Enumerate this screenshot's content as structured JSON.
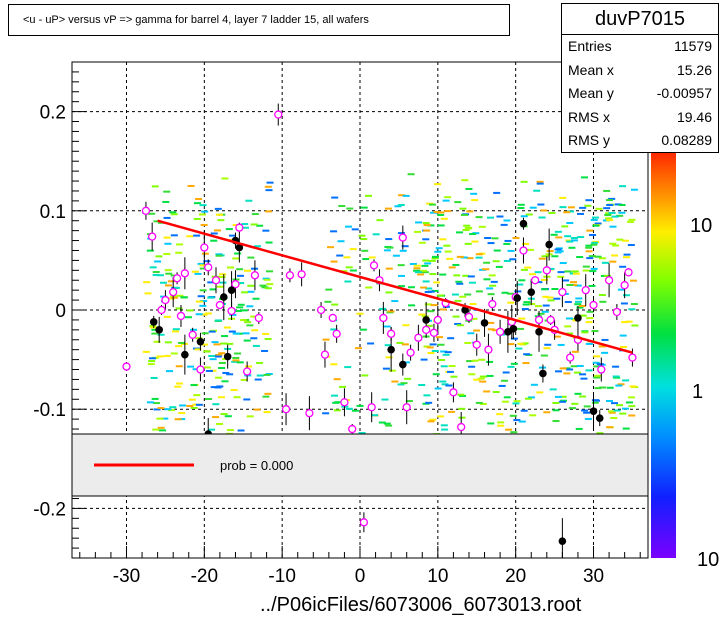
{
  "chart_data": {
    "type": "scatter",
    "title": "<u - uP>       versus   vP =>  gamma for barrel 4, layer 7 ladder 15, all wafers",
    "xlabel": "../P06icFiles/6073006_6073013.root",
    "ylabel": "",
    "xlim": [
      -37,
      37
    ],
    "ylim": [
      -0.25,
      0.25
    ],
    "x_ticks": [
      -30,
      -20,
      -10,
      0,
      10,
      20,
      30
    ],
    "x_tick_labels": [
      "-30",
      "-20",
      "-10",
      "0",
      "10",
      "20",
      "30"
    ],
    "y_ticks": [
      -0.2,
      -0.1,
      0,
      0.1,
      0.2
    ],
    "y_tick_labels": [
      "-0.2",
      "-0.1",
      "0",
      "0.1",
      "0.2"
    ],
    "grid": true,
    "colorbar_labels": [
      "10",
      "1",
      "10"
    ],
    "fit_line": {
      "x": [
        -26,
        35
      ],
      "y": [
        0.09,
        -0.043
      ],
      "color": "#ff0000"
    },
    "profile_black": [
      {
        "x": -26.5,
        "y": -0.012
      },
      {
        "x": -25.8,
        "y": -0.02
      },
      {
        "x": -22.5,
        "y": -0.045
      },
      {
        "x": -20.5,
        "y": -0.032
      },
      {
        "x": -19.5,
        "y": -0.125
      },
      {
        "x": -17.5,
        "y": 0.013
      },
      {
        "x": -17.0,
        "y": -0.047
      },
      {
        "x": -16.5,
        "y": 0.02
      },
      {
        "x": -16.0,
        "y": 0.07
      },
      {
        "x": -15.5,
        "y": 0.063
      },
      {
        "x": 4.0,
        "y": -0.04
      },
      {
        "x": 5.5,
        "y": -0.055
      },
      {
        "x": 8.5,
        "y": -0.01
      },
      {
        "x": 13.5,
        "y": 0.0
      },
      {
        "x": 16.0,
        "y": -0.013
      },
      {
        "x": 19.0,
        "y": -0.022
      },
      {
        "x": 19.7,
        "y": -0.019
      },
      {
        "x": 20.2,
        "y": 0.012
      },
      {
        "x": 21.0,
        "y": 0.087
      },
      {
        "x": 22.0,
        "y": 0.018
      },
      {
        "x": 23.0,
        "y": -0.022
      },
      {
        "x": 23.5,
        "y": -0.064
      },
      {
        "x": 24.3,
        "y": 0.066
      },
      {
        "x": 26.0,
        "y": -0.233
      },
      {
        "x": 28.0,
        "y": -0.008
      },
      {
        "x": 30.0,
        "y": -0.102
      },
      {
        "x": 30.8,
        "y": -0.109
      }
    ],
    "profile_magenta": [
      {
        "x": -30,
        "y": -0.057
      },
      {
        "x": -27.5,
        "y": 0.1
      },
      {
        "x": -26.7,
        "y": 0.074
      },
      {
        "x": -25.5,
        "y": 0.0
      },
      {
        "x": -25.0,
        "y": 0.01
      },
      {
        "x": -24.0,
        "y": 0.018
      },
      {
        "x": -23.5,
        "y": 0.032
      },
      {
        "x": -23.0,
        "y": -0.006
      },
      {
        "x": -22.5,
        "y": 0.037
      },
      {
        "x": -21.5,
        "y": -0.025
      },
      {
        "x": -20.5,
        "y": -0.06
      },
      {
        "x": -20.0,
        "y": 0.063
      },
      {
        "x": -19.5,
        "y": 0.043
      },
      {
        "x": -18.5,
        "y": 0.03
      },
      {
        "x": -18.0,
        "y": 0.005
      },
      {
        "x": -16.5,
        "y": -0.001
      },
      {
        "x": -16.0,
        "y": 0.026
      },
      {
        "x": -15.5,
        "y": 0.083
      },
      {
        "x": -14.5,
        "y": -0.062
      },
      {
        "x": -13.5,
        "y": 0.035
      },
      {
        "x": -13.0,
        "y": -0.008
      },
      {
        "x": -10.5,
        "y": 0.197
      },
      {
        "x": -9.5,
        "y": -0.1
      },
      {
        "x": -9.0,
        "y": 0.035
      },
      {
        "x": -7.5,
        "y": 0.036
      },
      {
        "x": -6.5,
        "y": -0.104
      },
      {
        "x": -5.0,
        "y": 0.0
      },
      {
        "x": -4.5,
        "y": -0.045
      },
      {
        "x": -3.5,
        "y": -0.008
      },
      {
        "x": -3.0,
        "y": -0.024
      },
      {
        "x": -2.0,
        "y": -0.093
      },
      {
        "x": -1.0,
        "y": -0.12
      },
      {
        "x": 0.5,
        "y": -0.214
      },
      {
        "x": 1.5,
        "y": -0.098
      },
      {
        "x": 1.8,
        "y": 0.045
      },
      {
        "x": 2.5,
        "y": 0.03
      },
      {
        "x": 3.0,
        "y": -0.008
      },
      {
        "x": 4.0,
        "y": -0.024
      },
      {
        "x": 5.5,
        "y": 0.073
      },
      {
        "x": 6.0,
        "y": -0.098
      },
      {
        "x": 6.5,
        "y": -0.043
      },
      {
        "x": 7.5,
        "y": -0.028
      },
      {
        "x": 8.5,
        "y": -0.02
      },
      {
        "x": 9.5,
        "y": -0.023
      },
      {
        "x": 10.0,
        "y": -0.01
      },
      {
        "x": 11.0,
        "y": 0.007
      },
      {
        "x": 12.0,
        "y": -0.083
      },
      {
        "x": 13.0,
        "y": -0.118
      },
      {
        "x": 14.0,
        "y": -0.007
      },
      {
        "x": 15.0,
        "y": -0.035
      },
      {
        "x": 16.5,
        "y": -0.04
      },
      {
        "x": 17.0,
        "y": 0.006
      },
      {
        "x": 18.0,
        "y": -0.022
      },
      {
        "x": 19.5,
        "y": -0.012
      },
      {
        "x": 20.0,
        "y": 0.013
      },
      {
        "x": 21.0,
        "y": 0.06
      },
      {
        "x": 22.5,
        "y": 0.03
      },
      {
        "x": 23.0,
        "y": -0.01
      },
      {
        "x": 24.0,
        "y": 0.04
      },
      {
        "x": 24.5,
        "y": -0.01
      },
      {
        "x": 25.0,
        "y": -0.02
      },
      {
        "x": 26.0,
        "y": 0.018
      },
      {
        "x": 27.0,
        "y": -0.048
      },
      {
        "x": 28.0,
        "y": -0.03
      },
      {
        "x": 29.0,
        "y": 0.02
      },
      {
        "x": 30.0,
        "y": 0.005
      },
      {
        "x": 31.0,
        "y": -0.06
      },
      {
        "x": 32.0,
        "y": 0.03
      },
      {
        "x": 33.0,
        "y": -0.002
      },
      {
        "x": 34.0,
        "y": 0.025
      },
      {
        "x": 34.5,
        "y": 0.038
      },
      {
        "x": 35.0,
        "y": -0.048
      }
    ],
    "legend": {
      "entry": "prob = 0.000",
      "line_color": "#ff0000"
    },
    "stats": {
      "name": "duvP7015",
      "rows": [
        {
          "key": "Entries",
          "value": "11579"
        },
        {
          "key": "Mean x",
          "value": "15.26"
        },
        {
          "key": "Mean y",
          "value": "-0.00957"
        },
        {
          "key": "RMS x",
          "value": "19.46"
        },
        {
          "key": "RMS y",
          "value": "0.08289"
        }
      ]
    }
  }
}
